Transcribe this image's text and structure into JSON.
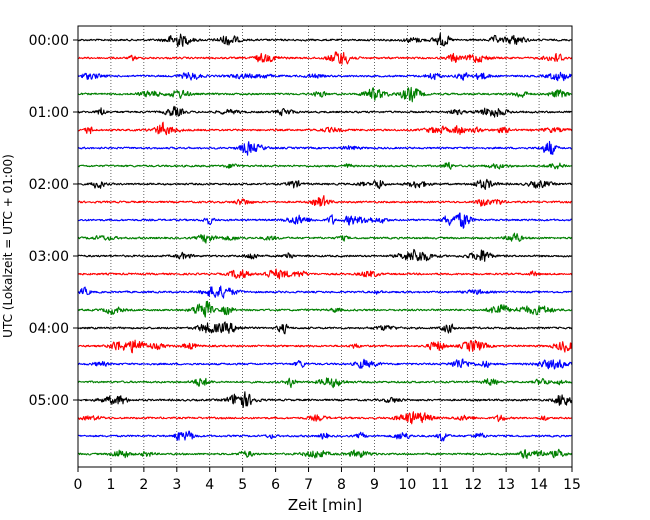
{
  "chart_data": {
    "type": "line",
    "title": "",
    "xlabel": "Zeit  [min]",
    "ylabel": "UTC (Lokalzeit = UTC + 01:00)",
    "xlim": [
      0,
      15
    ],
    "x_ticks": [
      0,
      1,
      2,
      3,
      4,
      5,
      6,
      7,
      8,
      9,
      10,
      11,
      12,
      13,
      14,
      15
    ],
    "x_tick_labels": [
      "0",
      "1",
      "2",
      "3",
      "4",
      "5",
      "6",
      "7",
      "8",
      "9",
      "10",
      "11",
      "12",
      "13",
      "14",
      "15"
    ],
    "y_tick_labels": [
      "00:00",
      "01:00",
      "02:00",
      "03:00",
      "04:00",
      "05:00"
    ],
    "trace_count": 24,
    "minutes_per_trace": 15,
    "trace_colors": [
      "#000000",
      "#ff0000",
      "#0000ff",
      "#008000"
    ],
    "grid": "vertical dotted lines at each minute",
    "legend": "none"
  }
}
